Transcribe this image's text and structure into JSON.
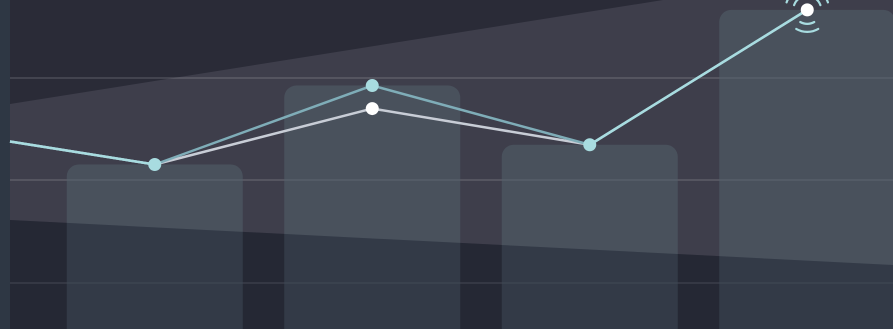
{
  "chart_data": {
    "type": "bar",
    "categories": [
      "",
      "",
      "",
      ""
    ],
    "grid": true,
    "ylim": [
      0,
      100
    ],
    "bars": {
      "values": [
        50,
        74,
        56,
        97
      ]
    },
    "series": [
      {
        "values": [
          50,
          74,
          56,
          97
        ],
        "color": "#7fadb8"
      },
      {
        "values": [
          50,
          67,
          56,
          97
        ],
        "color": "#c8cdd6"
      }
    ],
    "leading_value": 57,
    "highlight": {
      "series": 0,
      "index": 3,
      "icon": "pulse-icon"
    },
    "colors": {
      "background": "#2a2b37",
      "band": "#3e3e4b",
      "bar": "#52606b",
      "accent": "#a8dce0",
      "marker_white": "#ffffff"
    }
  }
}
